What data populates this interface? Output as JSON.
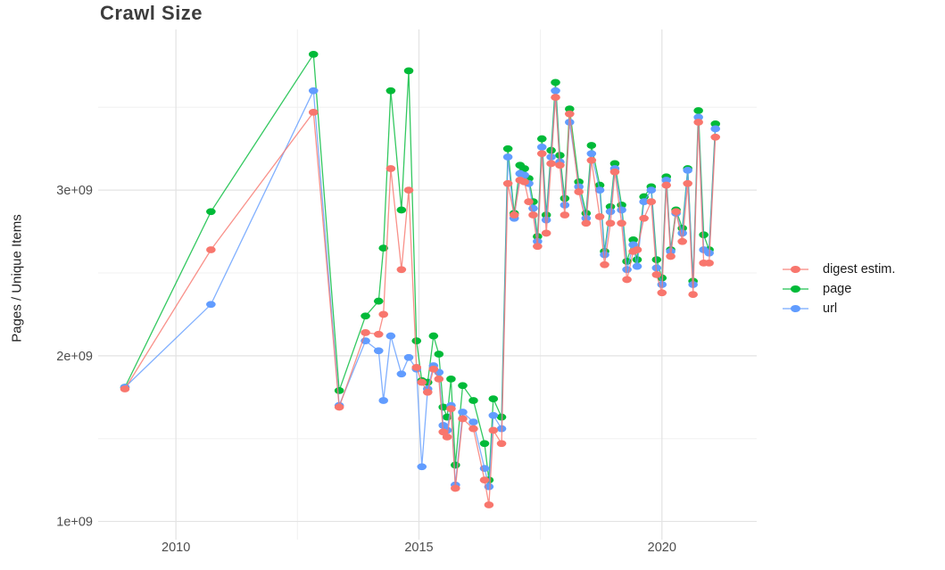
{
  "title": "Crawl Size",
  "y_axis_title": "Pages / Unique Items",
  "legend": {
    "items": [
      {
        "label": "digest estim.",
        "color": "#F8766D"
      },
      {
        "label": "page",
        "color": "#00BA38"
      },
      {
        "label": "url",
        "color": "#619CFF"
      }
    ]
  },
  "colors": {
    "background": "#ffffff",
    "grid_major": "#e3e3e3",
    "grid_minor": "#f0f0f0",
    "tick_text": "#4d4d4d",
    "title_text": "#3d3d3d"
  },
  "chart_data": {
    "type": "line",
    "title": "Crawl Size",
    "xlabel": "",
    "ylabel": "Pages / Unique Items",
    "x_unit": "year (decimal)",
    "value_unit": "1e9 (billions of pages / unique items)",
    "grid": true,
    "legend_position": "right",
    "marker": "point",
    "xticks": [
      2010,
      2015,
      2020
    ],
    "xtick_labels": [
      "2010",
      "2015",
      "2020"
    ],
    "yticks": [
      1,
      2,
      3
    ],
    "ytick_labels": [
      "1e+09",
      "2e+09",
      "3e+09"
    ],
    "x_minor": [
      2012.5,
      2017.5
    ],
    "y_minor": [
      1.5,
      2.5,
      3.5
    ],
    "xlim": [
      2008.4,
      2021.95
    ],
    "ylim": [
      0.89,
      3.97
    ],
    "draw_order": [
      "page",
      "url",
      "digest estim."
    ],
    "x": [
      2008.95,
      2010.72,
      2012.83,
      2013.36,
      2013.9,
      2014.17,
      2014.27,
      2014.42,
      2014.64,
      2014.79,
      2014.95,
      2015.06,
      2015.18,
      2015.3,
      2015.41,
      2015.5,
      2015.58,
      2015.66,
      2015.75,
      2015.9,
      2016.12,
      2016.35,
      2016.44,
      2016.53,
      2016.7,
      2016.83,
      2016.96,
      2017.08,
      2017.17,
      2017.26,
      2017.35,
      2017.44,
      2017.53,
      2017.62,
      2017.72,
      2017.81,
      2017.9,
      2018.0,
      2018.1,
      2018.29,
      2018.44,
      2018.55,
      2018.72,
      2018.82,
      2018.94,
      2019.03,
      2019.17,
      2019.28,
      2019.41,
      2019.49,
      2019.63,
      2019.78,
      2019.89,
      2020.0,
      2020.09,
      2020.18,
      2020.29,
      2020.42,
      2020.53,
      2020.64,
      2020.75,
      2020.86,
      2020.97,
      2021.1
    ],
    "series": [
      {
        "name": "digest estim.",
        "color": "#F8766D",
        "values": [
          1.8,
          2.64,
          3.47,
          1.69,
          2.14,
          2.13,
          2.25,
          3.13,
          2.52,
          3.0,
          1.93,
          1.84,
          1.78,
          1.92,
          1.86,
          1.54,
          1.51,
          1.68,
          1.2,
          1.62,
          1.56,
          1.25,
          1.1,
          1.55,
          1.47,
          3.04,
          2.85,
          3.06,
          3.05,
          2.93,
          2.85,
          2.66,
          3.22,
          2.74,
          3.16,
          3.56,
          3.15,
          2.85,
          3.46,
          2.99,
          2.8,
          3.18,
          2.84,
          2.55,
          2.8,
          3.11,
          2.8,
          2.46,
          2.63,
          2.64,
          2.83,
          2.93,
          2.49,
          2.38,
          3.03,
          2.6,
          2.87,
          2.69,
          3.04,
          2.37,
          3.41,
          2.56,
          2.56,
          3.32
        ]
      },
      {
        "name": "page",
        "color": "#00BA38",
        "values": [
          1.81,
          2.87,
          3.82,
          1.79,
          2.24,
          2.33,
          2.65,
          3.6,
          2.88,
          3.72,
          2.09,
          1.85,
          1.84,
          2.12,
          2.01,
          1.69,
          1.63,
          1.86,
          1.34,
          1.82,
          1.73,
          1.47,
          1.25,
          1.74,
          1.63,
          3.25,
          2.86,
          3.15,
          3.13,
          3.07,
          2.93,
          2.72,
          3.31,
          2.85,
          3.24,
          3.65,
          3.21,
          2.95,
          3.49,
          3.05,
          2.86,
          3.27,
          3.03,
          2.63,
          2.9,
          3.16,
          2.91,
          2.57,
          2.7,
          2.58,
          2.96,
          3.02,
          2.58,
          2.47,
          3.08,
          2.64,
          2.88,
          2.77,
          3.13,
          2.45,
          3.48,
          2.73,
          2.64,
          3.4
        ]
      },
      {
        "name": "url",
        "color": "#619CFF",
        "values": [
          1.81,
          2.31,
          3.6,
          1.7,
          2.09,
          2.03,
          1.73,
          2.12,
          1.89,
          1.99,
          1.92,
          1.33,
          1.8,
          1.94,
          1.9,
          1.58,
          1.55,
          1.7,
          1.22,
          1.66,
          1.6,
          1.32,
          1.21,
          1.64,
          1.56,
          3.2,
          2.83,
          3.1,
          3.09,
          3.04,
          2.89,
          2.69,
          3.26,
          2.82,
          3.2,
          3.6,
          3.17,
          2.91,
          3.41,
          3.02,
          2.83,
          3.22,
          3.0,
          2.61,
          2.87,
          3.13,
          2.88,
          2.52,
          2.67,
          2.54,
          2.93,
          3.0,
          2.53,
          2.43,
          3.06,
          2.63,
          2.86,
          2.74,
          3.12,
          2.43,
          3.44,
          2.64,
          2.62,
          3.37
        ]
      }
    ]
  }
}
